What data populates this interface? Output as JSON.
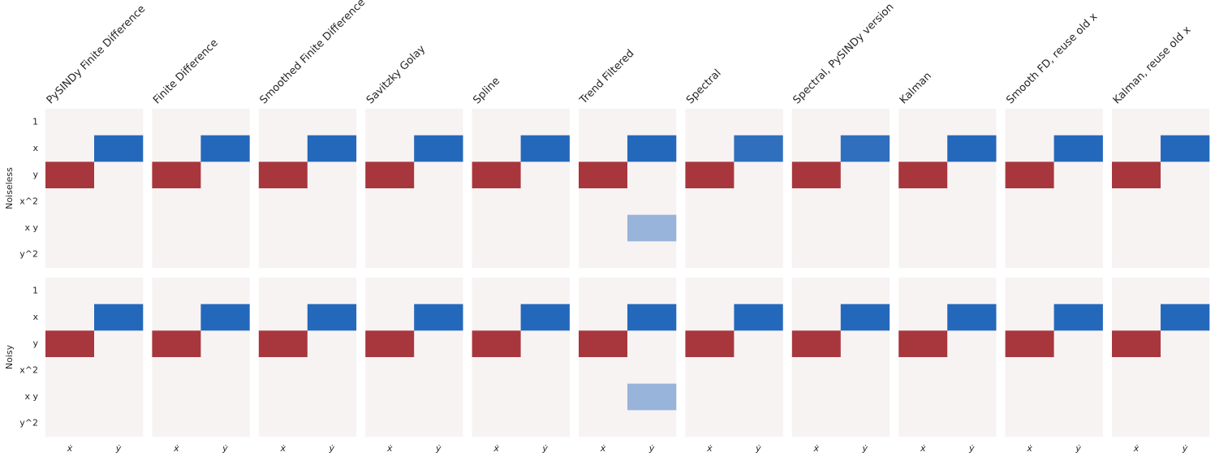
{
  "chart_data": {
    "type": "heatmap-grid",
    "row_labels": [
      "Noiseless",
      "Noisy"
    ],
    "column_titles": [
      "PySINDy Finite Difference",
      "Finite Difference",
      "Smoothed Finite Difference",
      "Savitzky Golay",
      "Spline",
      "Trend Filtered",
      "Spectral",
      "Spectral, PySINDy version",
      "Kalman",
      "Smooth FD, reuse old x",
      "Kalman, reuse old x"
    ],
    "y_categories": [
      "1",
      "x",
      "y",
      "x^2",
      "x y",
      "y^2"
    ],
    "x_categories": [
      "ẋ",
      "ẏ"
    ],
    "colormap": [
      {
        "value": -1,
        "color": "#a8373d"
      },
      {
        "value": 0,
        "color": "#f7f3f3"
      },
      {
        "value": 1,
        "color": "#2468bb"
      }
    ],
    "values": [
      [
        [
          [
            0,
            0
          ],
          [
            0,
            1
          ],
          [
            -1,
            0
          ],
          [
            0,
            0
          ],
          [
            0,
            0
          ],
          [
            0,
            0
          ]
        ],
        [
          [
            0,
            0
          ],
          [
            0,
            1
          ],
          [
            -1,
            0
          ],
          [
            0,
            0
          ],
          [
            0,
            0
          ],
          [
            0,
            0
          ]
        ],
        [
          [
            0,
            0
          ],
          [
            0,
            1
          ],
          [
            -1,
            0
          ],
          [
            0,
            0
          ],
          [
            0,
            0
          ],
          [
            0,
            0
          ]
        ],
        [
          [
            0,
            0
          ],
          [
            0,
            1
          ],
          [
            -1,
            0
          ],
          [
            0,
            0
          ],
          [
            0,
            0
          ],
          [
            0,
            0
          ]
        ],
        [
          [
            0,
            0
          ],
          [
            0,
            1
          ],
          [
            -1,
            0
          ],
          [
            0,
            0
          ],
          [
            0,
            0
          ],
          [
            0,
            0
          ]
        ],
        [
          [
            0,
            0
          ],
          [
            0,
            1
          ],
          [
            -1,
            0
          ],
          [
            0,
            0
          ],
          [
            0,
            0.45
          ],
          [
            0,
            0
          ]
        ],
        [
          [
            0,
            0
          ],
          [
            0,
            0.95
          ],
          [
            -1,
            0
          ],
          [
            0,
            0
          ],
          [
            0,
            0
          ],
          [
            0,
            0
          ]
        ],
        [
          [
            0,
            0
          ],
          [
            0,
            0.95
          ],
          [
            -1,
            0
          ],
          [
            0,
            0
          ],
          [
            0,
            0
          ],
          [
            0,
            0
          ]
        ],
        [
          [
            0,
            0
          ],
          [
            0,
            1
          ],
          [
            -1,
            0
          ],
          [
            0,
            0
          ],
          [
            0,
            0
          ],
          [
            0,
            0
          ]
        ],
        [
          [
            0,
            0
          ],
          [
            0,
            1
          ],
          [
            -1,
            0
          ],
          [
            0,
            0
          ],
          [
            0,
            0
          ],
          [
            0,
            0
          ]
        ],
        [
          [
            0,
            0
          ],
          [
            0,
            1
          ],
          [
            -1,
            0
          ],
          [
            0,
            0
          ],
          [
            0,
            0
          ],
          [
            0,
            0
          ]
        ]
      ],
      [
        [
          [
            0,
            0
          ],
          [
            0,
            1
          ],
          [
            -1,
            0
          ],
          [
            0,
            0
          ],
          [
            0,
            0
          ],
          [
            0,
            0
          ]
        ],
        [
          [
            0,
            0
          ],
          [
            0,
            1
          ],
          [
            -1,
            0
          ],
          [
            0,
            0
          ],
          [
            0,
            0
          ],
          [
            0,
            0
          ]
        ],
        [
          [
            0,
            0
          ],
          [
            0,
            1
          ],
          [
            -1,
            0
          ],
          [
            0,
            0
          ],
          [
            0,
            0
          ],
          [
            0,
            0
          ]
        ],
        [
          [
            0,
            0
          ],
          [
            0,
            1
          ],
          [
            -1,
            0
          ],
          [
            0,
            0
          ],
          [
            0,
            0
          ],
          [
            0,
            0
          ]
        ],
        [
          [
            0,
            0
          ],
          [
            0,
            1
          ],
          [
            -1,
            0
          ],
          [
            0,
            0
          ],
          [
            0,
            0
          ],
          [
            0,
            0
          ]
        ],
        [
          [
            0,
            0
          ],
          [
            0,
            1
          ],
          [
            -1,
            0
          ],
          [
            0,
            0
          ],
          [
            0,
            0.45
          ],
          [
            0,
            0
          ]
        ],
        [
          [
            0,
            0
          ],
          [
            0,
            1
          ],
          [
            -1,
            0
          ],
          [
            0,
            0
          ],
          [
            0,
            0
          ],
          [
            0,
            0
          ]
        ],
        [
          [
            0,
            0
          ],
          [
            0,
            1
          ],
          [
            -1,
            0
          ],
          [
            0,
            0
          ],
          [
            0,
            0
          ],
          [
            0,
            0
          ]
        ],
        [
          [
            0,
            0
          ],
          [
            0,
            1
          ],
          [
            -1,
            0
          ],
          [
            0,
            0
          ],
          [
            0,
            0
          ],
          [
            0,
            0
          ]
        ],
        [
          [
            0,
            0
          ],
          [
            0,
            1
          ],
          [
            -1,
            0
          ],
          [
            0,
            0
          ],
          [
            0,
            0
          ],
          [
            0,
            0
          ]
        ],
        [
          [
            0,
            0
          ],
          [
            0,
            1
          ],
          [
            -1,
            0
          ],
          [
            0,
            0
          ],
          [
            0,
            0
          ],
          [
            0,
            0
          ]
        ]
      ]
    ]
  }
}
